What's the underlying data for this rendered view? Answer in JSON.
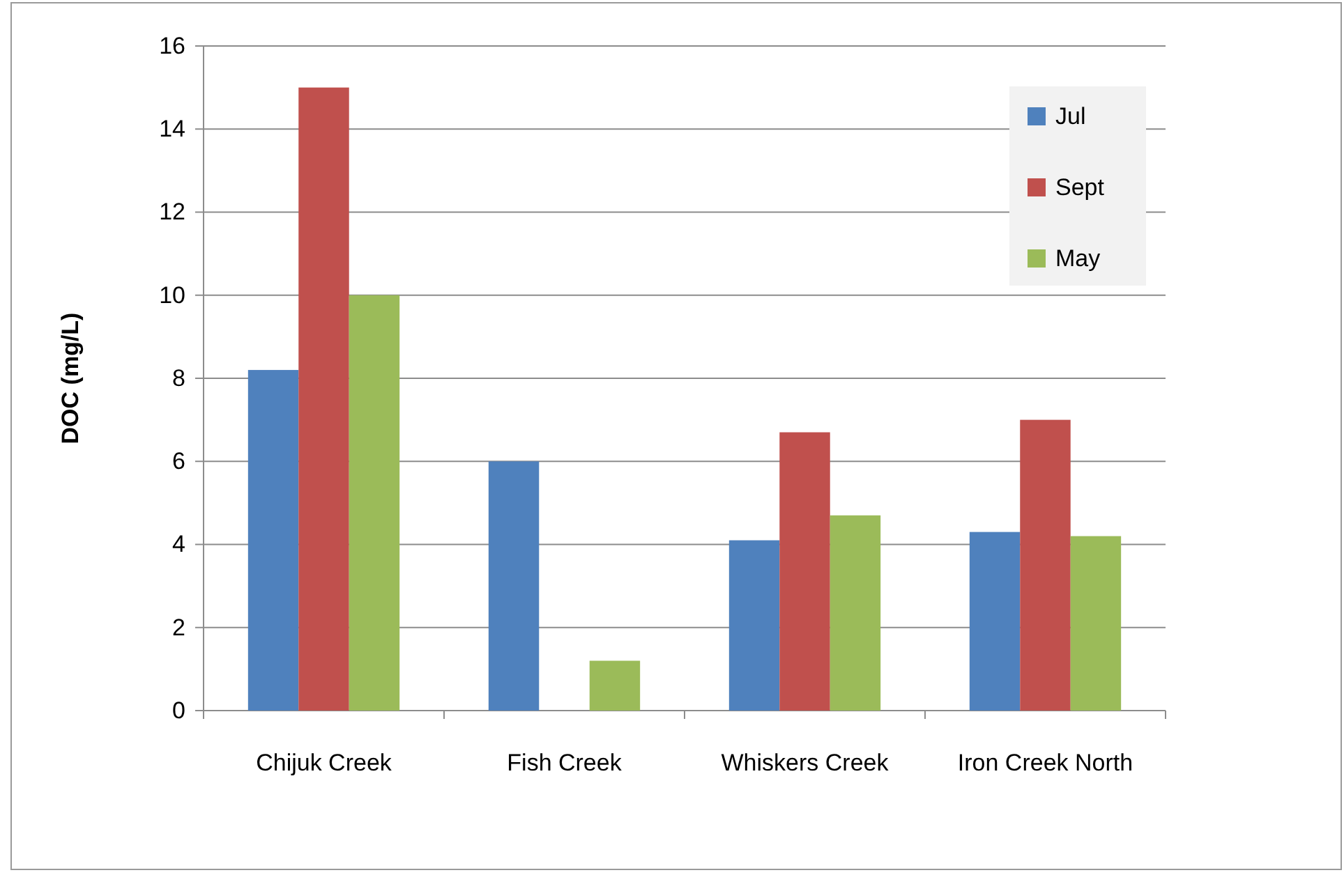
{
  "chart_data": {
    "type": "bar",
    "ylabel": "DOC (mg/L)",
    "categories": [
      "Chijuk Creek",
      "Fish Creek",
      "Whiskers Creek",
      "Iron Creek North"
    ],
    "series": [
      {
        "name": "Jul",
        "color": "#4f81bd",
        "values": [
          8.2,
          6.0,
          4.1,
          4.3
        ]
      },
      {
        "name": "Sept",
        "color": "#c0504d",
        "values": [
          15.0,
          null,
          6.7,
          7.0
        ]
      },
      {
        "name": "May",
        "color": "#9bbb59",
        "values": [
          10.0,
          1.2,
          4.7,
          4.2
        ]
      }
    ],
    "ylim": [
      0,
      16
    ],
    "yticks": [
      0,
      2,
      4,
      6,
      8,
      10,
      12,
      14,
      16
    ],
    "grid": "y",
    "legend": "top right"
  }
}
